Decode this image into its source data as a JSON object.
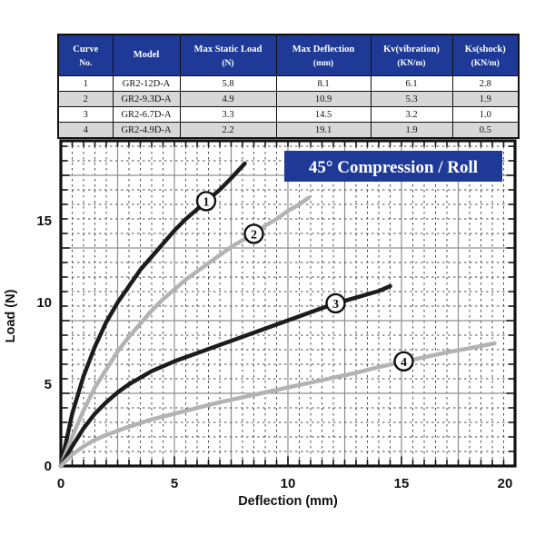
{
  "colors": {
    "header_navy": "#1e3a96",
    "row_alt_gray": "#d7d7d7",
    "curve_black": "#1c1c1c",
    "curve_gray": "#b3b3b3",
    "grid_solid": "#8f8f8f",
    "grid_dash": "#4a4a4a",
    "title_text": "#ffffff"
  },
  "table": {
    "columns": [
      {
        "line1": "Curve",
        "line2": "No."
      },
      {
        "line1": "Model",
        "line2": ""
      },
      {
        "line1": "Max Static Load",
        "line2": "(N)"
      },
      {
        "line1": "Max Deflection",
        "line2": "(mm)"
      },
      {
        "line1": "Kv(vibration)",
        "line2": "(KN/m)"
      },
      {
        "line1": "Ks(shock)",
        "line2": "(KN/m)"
      }
    ],
    "rows": [
      [
        "1",
        "GR2-12D-A",
        "5.8",
        "8.1",
        "6.1",
        "2.8"
      ],
      [
        "2",
        "GR2-9.3D-A",
        "4.9",
        "10.9",
        "5.3",
        "1.9"
      ],
      [
        "3",
        "GR2-6.7D-A",
        "3.3",
        "14.5",
        "3.2",
        "1.0"
      ],
      [
        "4",
        "GR2-4.9D-A",
        "2.2",
        "19.1",
        "1.9",
        "0.5"
      ]
    ]
  },
  "chart_data": {
    "type": "line",
    "title": "45° Compression / Roll",
    "xlabel": "Deflection (mm)",
    "ylabel": "Load (N)",
    "xlim": [
      0,
      20
    ],
    "ylim": [
      0,
      20
    ],
    "x_ticks": [
      0,
      5,
      10,
      15,
      20
    ],
    "y_ticks": [
      0,
      5,
      10,
      15
    ],
    "grid": "dense dashed minor grid with solid gray major lines",
    "legend_position": "numbered circles on curves",
    "series": [
      {
        "name": "1",
        "model": "GR2-12D-A",
        "color": "#1c1c1c",
        "label_at": [
          6.4,
          16.2
        ],
        "points": [
          [
            0,
            0
          ],
          [
            0.5,
            3.2
          ],
          [
            1,
            5.5
          ],
          [
            1.5,
            7.3
          ],
          [
            2,
            8.8
          ],
          [
            2.5,
            10.0
          ],
          [
            3,
            11.0
          ],
          [
            3.5,
            12.0
          ],
          [
            4,
            12.8
          ],
          [
            4.5,
            13.6
          ],
          [
            5,
            14.4
          ],
          [
            5.5,
            15.1
          ],
          [
            6,
            15.7
          ],
          [
            6.5,
            16.3
          ],
          [
            7,
            16.9
          ],
          [
            7.5,
            17.6
          ],
          [
            8.1,
            18.5
          ]
        ]
      },
      {
        "name": "2",
        "model": "GR2-9.3D-A",
        "color": "#b3b3b3",
        "label_at": [
          8.5,
          14.2
        ],
        "points": [
          [
            0,
            0
          ],
          [
            0.5,
            1.8
          ],
          [
            1,
            3.4
          ],
          [
            1.5,
            4.8
          ],
          [
            2,
            5.9
          ],
          [
            2.5,
            7.0
          ],
          [
            3,
            7.9
          ],
          [
            3.5,
            8.7
          ],
          [
            4,
            9.5
          ],
          [
            4.5,
            10.2
          ],
          [
            5,
            10.8
          ],
          [
            5.5,
            11.4
          ],
          [
            6,
            11.9
          ],
          [
            6.5,
            12.4
          ],
          [
            7,
            12.9
          ],
          [
            7.5,
            13.4
          ],
          [
            8,
            13.8
          ],
          [
            8.5,
            14.2
          ],
          [
            9,
            14.7
          ],
          [
            9.5,
            15.1
          ],
          [
            10,
            15.6
          ],
          [
            10.5,
            16.0
          ],
          [
            10.9,
            16.4
          ]
        ]
      },
      {
        "name": "3",
        "model": "GR2-6.7D-A",
        "color": "#1c1c1c",
        "label_at": [
          12.1,
          9.95
        ],
        "points": [
          [
            0,
            0
          ],
          [
            0.5,
            1.2
          ],
          [
            1,
            2.3
          ],
          [
            1.5,
            3.2
          ],
          [
            2,
            3.9
          ],
          [
            2.5,
            4.5
          ],
          [
            3,
            5.0
          ],
          [
            3.5,
            5.4
          ],
          [
            4,
            5.8
          ],
          [
            5,
            6.4
          ],
          [
            6,
            6.9
          ],
          [
            7,
            7.4
          ],
          [
            8,
            7.9
          ],
          [
            9,
            8.4
          ],
          [
            10,
            8.9
          ],
          [
            11,
            9.4
          ],
          [
            12,
            9.9
          ],
          [
            13,
            10.3
          ],
          [
            14,
            10.7
          ],
          [
            14.5,
            11.0
          ]
        ]
      },
      {
        "name": "4",
        "model": "GR2-4.9D-A",
        "color": "#b3b3b3",
        "label_at": [
          15.1,
          6.4
        ],
        "points": [
          [
            0,
            0
          ],
          [
            0.5,
            0.7
          ],
          [
            1,
            1.2
          ],
          [
            1.5,
            1.6
          ],
          [
            2,
            1.9
          ],
          [
            3,
            2.4
          ],
          [
            4,
            2.85
          ],
          [
            5,
            3.2
          ],
          [
            6,
            3.55
          ],
          [
            7,
            3.9
          ],
          [
            8,
            4.2
          ],
          [
            9,
            4.5
          ],
          [
            10,
            4.8
          ],
          [
            11,
            5.1
          ],
          [
            12,
            5.4
          ],
          [
            13,
            5.7
          ],
          [
            14,
            6.05
          ],
          [
            15,
            6.35
          ],
          [
            16,
            6.65
          ],
          [
            17,
            6.95
          ],
          [
            18,
            7.2
          ],
          [
            19.1,
            7.5
          ]
        ]
      }
    ]
  }
}
